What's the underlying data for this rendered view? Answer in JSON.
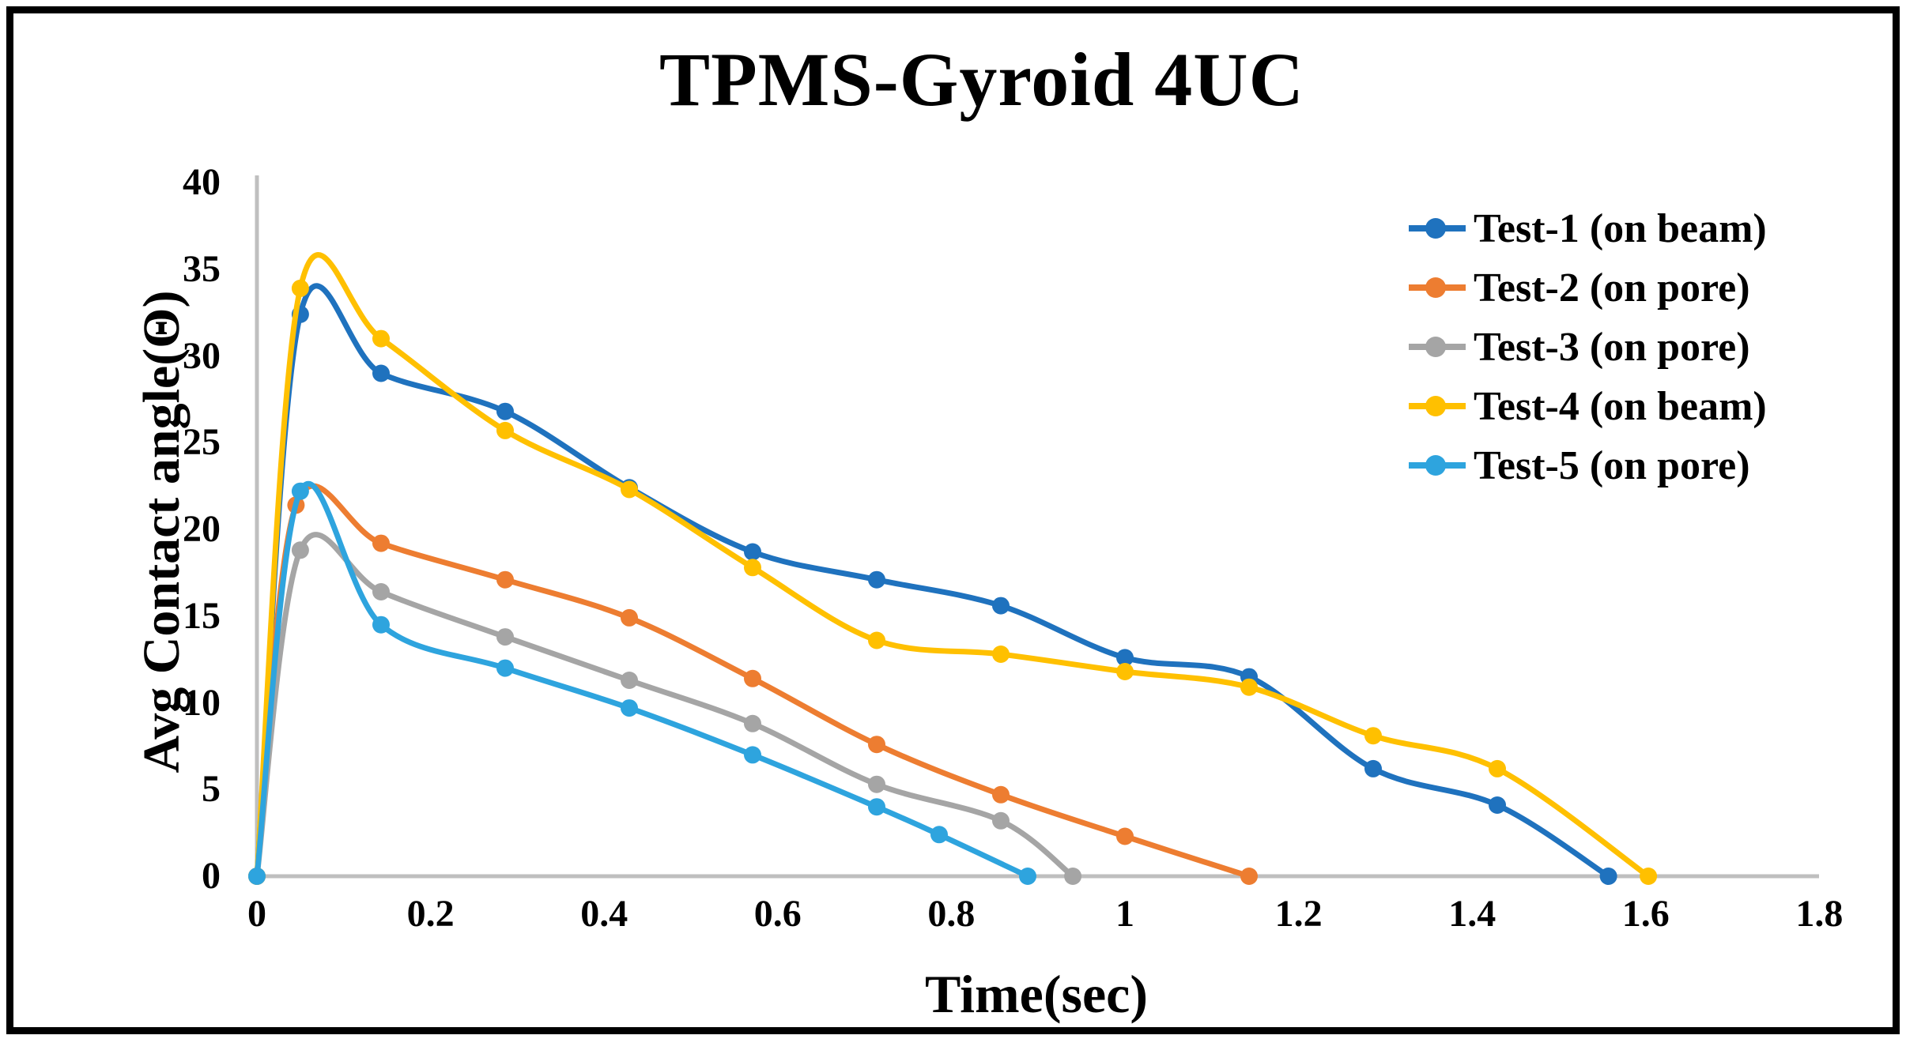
{
  "title": "TPMS-Gyroid 4UC",
  "chart_data": {
    "type": "line",
    "title": "TPMS-Gyroid 4UC",
    "xlabel": "Time(sec)",
    "ylabel": "Avg Contact angle(Θ)",
    "xlim": [
      0,
      1.8
    ],
    "ylim": [
      0,
      40
    ],
    "grid": false,
    "smoothed": true,
    "legend_position": "right",
    "x_ticks": [
      {
        "value": 0,
        "label": "0"
      },
      {
        "value": 0.2,
        "label": "0.2"
      },
      {
        "value": 0.4,
        "label": "0.4"
      },
      {
        "value": 0.6,
        "label": "0.6"
      },
      {
        "value": 0.8,
        "label": "0.8"
      },
      {
        "value": 1,
        "label": "1"
      },
      {
        "value": 1.2,
        "label": "1.2"
      },
      {
        "value": 1.4,
        "label": "1.4"
      },
      {
        "value": 1.6,
        "label": "1.6"
      },
      {
        "value": 1.8,
        "label": "1.8"
      }
    ],
    "y_ticks": [
      {
        "value": 0,
        "label": "0"
      },
      {
        "value": 5,
        "label": "5"
      },
      {
        "value": 10,
        "label": "10"
      },
      {
        "value": 15,
        "label": "15"
      },
      {
        "value": 20,
        "label": "20"
      },
      {
        "value": 25,
        "label": "25"
      },
      {
        "value": 30,
        "label": "30"
      },
      {
        "value": 35,
        "label": "35"
      },
      {
        "value": 40,
        "label": "40"
      }
    ],
    "series": [
      {
        "name": "Test-1 (on beam)",
        "color": "#1F72BE",
        "points": [
          [
            0,
            0
          ],
          [
            0.05,
            32.4
          ],
          [
            0.143,
            29.0
          ],
          [
            0.286,
            26.8
          ],
          [
            0.429,
            22.4
          ],
          [
            0.571,
            18.7
          ],
          [
            0.714,
            17.1
          ],
          [
            0.857,
            15.6
          ],
          [
            1.0,
            12.6
          ],
          [
            1.143,
            11.5
          ],
          [
            1.286,
            6.2
          ],
          [
            1.429,
            4.1
          ],
          [
            1.557,
            0
          ]
        ]
      },
      {
        "name": "Test-2 (on pore)",
        "color": "#ED7D31",
        "points": [
          [
            0,
            0
          ],
          [
            0.045,
            21.4
          ],
          [
            0.143,
            19.2
          ],
          [
            0.286,
            17.1
          ],
          [
            0.429,
            14.9
          ],
          [
            0.571,
            11.4
          ],
          [
            0.714,
            7.6
          ],
          [
            0.857,
            4.7
          ],
          [
            1.0,
            2.3
          ],
          [
            1.143,
            0
          ]
        ]
      },
      {
        "name": "Test-3 (on pore)",
        "color": "#A5A5A5",
        "points": [
          [
            0,
            0
          ],
          [
            0.05,
            18.8
          ],
          [
            0.143,
            16.4
          ],
          [
            0.286,
            13.8
          ],
          [
            0.429,
            11.3
          ],
          [
            0.571,
            8.8
          ],
          [
            0.714,
            5.3
          ],
          [
            0.857,
            3.2
          ],
          [
            0.94,
            0
          ]
        ]
      },
      {
        "name": "Test-4 (on beam)",
        "color": "#FFC000",
        "points": [
          [
            0,
            0
          ],
          [
            0.05,
            33.9
          ],
          [
            0.143,
            31.0
          ],
          [
            0.286,
            25.7
          ],
          [
            0.429,
            22.3
          ],
          [
            0.571,
            17.8
          ],
          [
            0.714,
            13.6
          ],
          [
            0.857,
            12.8
          ],
          [
            1.0,
            11.8
          ],
          [
            1.143,
            10.9
          ],
          [
            1.286,
            8.1
          ],
          [
            1.429,
            6.2
          ],
          [
            1.603,
            0
          ]
        ]
      },
      {
        "name": "Test-5 (on pore)",
        "color": "#2EA4DE",
        "points": [
          [
            0,
            0
          ],
          [
            0.05,
            22.2
          ],
          [
            0.143,
            14.5
          ],
          [
            0.286,
            12.0
          ],
          [
            0.429,
            9.7
          ],
          [
            0.571,
            7.0
          ],
          [
            0.714,
            4.0
          ],
          [
            0.786,
            2.4
          ],
          [
            0.888,
            0
          ]
        ]
      }
    ]
  },
  "colors": {
    "background": "#FFFFFF",
    "border": "#000000",
    "axis": "#BFBFBF",
    "text": "#000000"
  }
}
